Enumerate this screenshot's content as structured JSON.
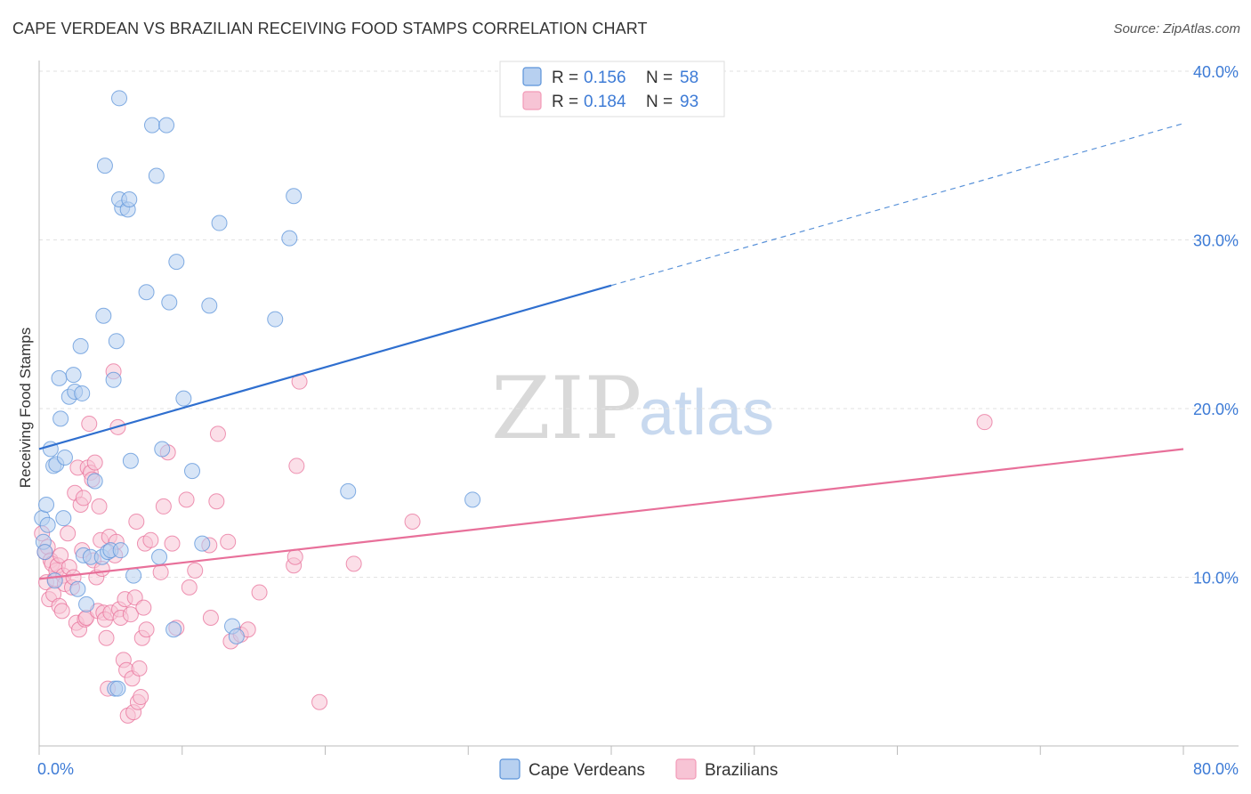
{
  "title": "CAPE VERDEAN VS BRAZILIAN RECEIVING FOOD STAMPS CORRELATION CHART",
  "source": "Source: ZipAtlas.com",
  "watermark": {
    "zip": "ZIP",
    "atlas": "atlas"
  },
  "legend": {
    "rows": [
      {
        "r_label": "R =",
        "r_value": "0.156",
        "n_label": "N =",
        "n_value": "58",
        "color": "#5b93d9"
      },
      {
        "r_label": "R =",
        "r_value": "0.184",
        "n_label": "N =",
        "n_value": "93",
        "color": "#f29ab7"
      }
    ]
  },
  "chart_data": {
    "type": "scatter",
    "title": "CAPE VERDEAN VS BRAZILIAN RECEIVING FOOD STAMPS CORRELATION CHART",
    "xlabel": "",
    "ylabel": "Receiving Food Stamps",
    "xlim": [
      0,
      80
    ],
    "ylim": [
      0,
      40
    ],
    "x_tick_labels": [
      {
        "value": 0,
        "label": "0.0%"
      },
      {
        "value": 80,
        "label": "80.0%"
      }
    ],
    "y_tick_labels": [
      {
        "value": 10,
        "label": "10.0%"
      },
      {
        "value": 20,
        "label": "20.0%"
      },
      {
        "value": 30,
        "label": "30.0%"
      },
      {
        "value": 40,
        "label": "40.0%"
      }
    ],
    "series": [
      {
        "name": "Cape Verdeans",
        "color": "#5b93d9",
        "fill": "#b7d0f0",
        "trend": {
          "x0": 0,
          "y0": 17.6,
          "x1": 40,
          "y1": 27.3,
          "dashed_to_x": 80,
          "dashed_to_y": 36.9
        },
        "points": [
          [
            0.2,
            13.5
          ],
          [
            0.3,
            12.1
          ],
          [
            0.4,
            11.5
          ],
          [
            0.5,
            14.3
          ],
          [
            0.6,
            13.1
          ],
          [
            0.8,
            17.6
          ],
          [
            1.0,
            16.6
          ],
          [
            1.1,
            9.8
          ],
          [
            1.2,
            16.7
          ],
          [
            1.4,
            21.8
          ],
          [
            1.5,
            19.4
          ],
          [
            1.7,
            13.5
          ],
          [
            1.8,
            17.1
          ],
          [
            2.1,
            20.7
          ],
          [
            2.4,
            22.0
          ],
          [
            2.5,
            21.0
          ],
          [
            2.7,
            9.3
          ],
          [
            2.9,
            23.7
          ],
          [
            3.0,
            20.9
          ],
          [
            3.1,
            11.3
          ],
          [
            3.3,
            8.4
          ],
          [
            3.6,
            11.2
          ],
          [
            3.9,
            15.7
          ],
          [
            4.4,
            11.2
          ],
          [
            4.5,
            25.5
          ],
          [
            4.6,
            34.4
          ],
          [
            4.8,
            11.5
          ],
          [
            5.0,
            11.6
          ],
          [
            5.2,
            21.7
          ],
          [
            5.4,
            24.0
          ],
          [
            5.6,
            38.4
          ],
          [
            5.3,
            3.4
          ],
          [
            5.7,
            11.6
          ],
          [
            5.5,
            3.4
          ],
          [
            5.8,
            31.9
          ],
          [
            5.6,
            32.4
          ],
          [
            6.2,
            31.8
          ],
          [
            6.3,
            32.4
          ],
          [
            6.4,
            16.9
          ],
          [
            6.6,
            10.1
          ],
          [
            7.5,
            26.9
          ],
          [
            7.9,
            36.8
          ],
          [
            8.2,
            33.8
          ],
          [
            8.4,
            11.2
          ],
          [
            8.6,
            17.6
          ],
          [
            8.9,
            36.8
          ],
          [
            9.1,
            26.3
          ],
          [
            9.4,
            6.9
          ],
          [
            9.6,
            28.7
          ],
          [
            10.1,
            20.6
          ],
          [
            10.7,
            16.3
          ],
          [
            11.4,
            12.0
          ],
          [
            11.9,
            26.1
          ],
          [
            12.6,
            31.0
          ],
          [
            13.5,
            7.1
          ],
          [
            13.8,
            6.5
          ],
          [
            16.5,
            25.3
          ],
          [
            17.5,
            30.1
          ],
          [
            17.8,
            32.6
          ],
          [
            21.6,
            15.1
          ],
          [
            30.3,
            14.6
          ]
        ]
      },
      {
        "name": "Brazilians",
        "color": "#e8709a",
        "fill": "#f7c4d5",
        "trend": {
          "x0": 0,
          "y0": 9.9,
          "x1": 80,
          "y1": 17.6
        },
        "points": [
          [
            0.2,
            12.6
          ],
          [
            0.4,
            11.5
          ],
          [
            0.5,
            9.7
          ],
          [
            0.6,
            11.8
          ],
          [
            0.7,
            8.7
          ],
          [
            0.8,
            11.0
          ],
          [
            0.9,
            10.8
          ],
          [
            1.0,
            9.0
          ],
          [
            1.1,
            9.9
          ],
          [
            1.2,
            10.4
          ],
          [
            1.3,
            10.7
          ],
          [
            1.4,
            8.3
          ],
          [
            1.5,
            11.3
          ],
          [
            1.6,
            8.0
          ],
          [
            1.7,
            10.1
          ],
          [
            1.8,
            9.6
          ],
          [
            2.0,
            12.6
          ],
          [
            2.1,
            10.6
          ],
          [
            2.3,
            9.4
          ],
          [
            2.4,
            10.0
          ],
          [
            2.5,
            15.0
          ],
          [
            2.6,
            7.3
          ],
          [
            2.7,
            16.5
          ],
          [
            2.8,
            6.9
          ],
          [
            2.9,
            14.3
          ],
          [
            3.0,
            11.6
          ],
          [
            3.1,
            14.7
          ],
          [
            3.2,
            7.5
          ],
          [
            3.3,
            7.6
          ],
          [
            3.4,
            16.5
          ],
          [
            3.5,
            19.1
          ],
          [
            3.6,
            16.2
          ],
          [
            3.7,
            15.8
          ],
          [
            3.8,
            11.0
          ],
          [
            3.9,
            16.8
          ],
          [
            4.0,
            10.0
          ],
          [
            4.1,
            8.0
          ],
          [
            4.2,
            14.2
          ],
          [
            4.3,
            12.2
          ],
          [
            4.4,
            10.5
          ],
          [
            4.5,
            7.9
          ],
          [
            4.6,
            7.5
          ],
          [
            4.7,
            6.4
          ],
          [
            4.8,
            3.4
          ],
          [
            4.9,
            12.4
          ],
          [
            5.0,
            7.9
          ],
          [
            5.2,
            22.2
          ],
          [
            5.3,
            11.3
          ],
          [
            5.4,
            12.1
          ],
          [
            5.5,
            18.9
          ],
          [
            5.6,
            8.1
          ],
          [
            5.7,
            7.6
          ],
          [
            5.9,
            5.1
          ],
          [
            6.0,
            8.7
          ],
          [
            6.1,
            4.5
          ],
          [
            6.2,
            1.8
          ],
          [
            6.4,
            7.8
          ],
          [
            6.5,
            4.0
          ],
          [
            6.6,
            2.0
          ],
          [
            6.7,
            8.8
          ],
          [
            6.8,
            13.3
          ],
          [
            6.9,
            2.6
          ],
          [
            7.0,
            4.6
          ],
          [
            7.1,
            2.9
          ],
          [
            7.2,
            6.4
          ],
          [
            7.3,
            8.2
          ],
          [
            7.4,
            12.0
          ],
          [
            7.5,
            6.9
          ],
          [
            7.8,
            12.2
          ],
          [
            8.5,
            10.3
          ],
          [
            8.7,
            14.2
          ],
          [
            9.0,
            17.4
          ],
          [
            9.3,
            12.0
          ],
          [
            9.6,
            7.0
          ],
          [
            10.3,
            14.6
          ],
          [
            10.5,
            9.4
          ],
          [
            10.9,
            10.4
          ],
          [
            11.9,
            11.9
          ],
          [
            12.0,
            7.6
          ],
          [
            12.4,
            14.5
          ],
          [
            12.5,
            18.5
          ],
          [
            13.2,
            12.1
          ],
          [
            13.4,
            6.2
          ],
          [
            14.1,
            6.6
          ],
          [
            14.6,
            6.9
          ],
          [
            15.4,
            9.1
          ],
          [
            17.8,
            10.7
          ],
          [
            17.9,
            11.2
          ],
          [
            18.0,
            16.6
          ],
          [
            18.2,
            21.6
          ],
          [
            19.6,
            2.6
          ],
          [
            22.0,
            10.8
          ],
          [
            26.1,
            13.3
          ],
          [
            66.1,
            19.2
          ]
        ]
      }
    ]
  }
}
